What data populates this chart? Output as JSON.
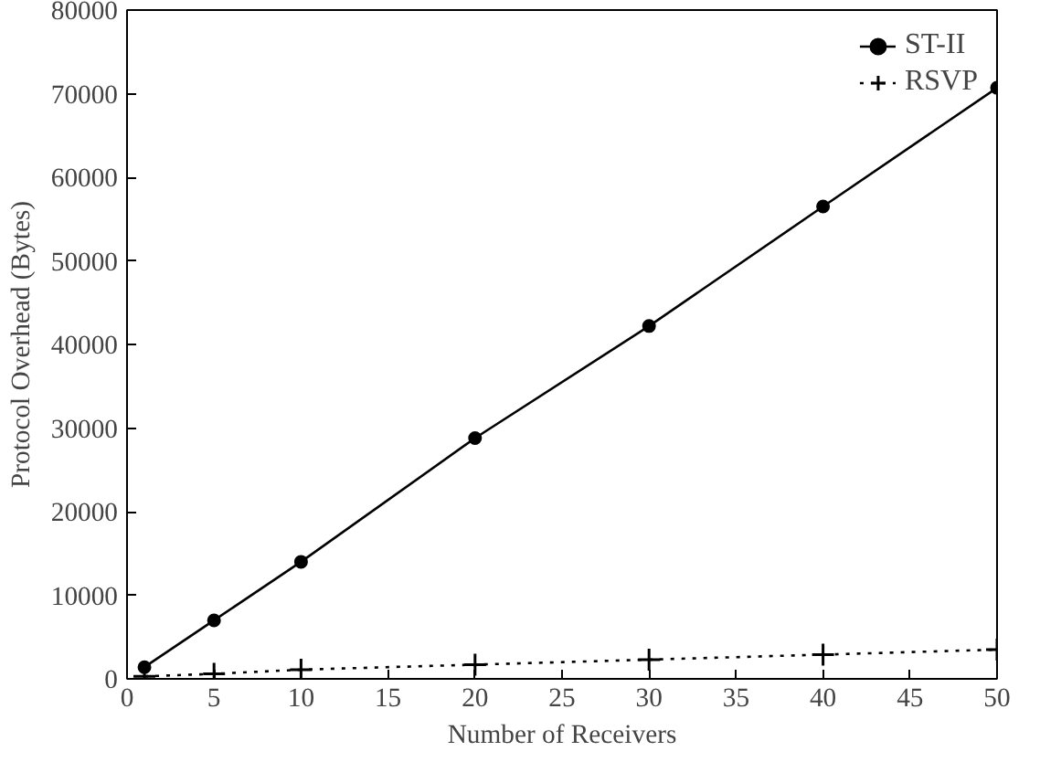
{
  "chart_data": {
    "type": "line",
    "xlabel": "Number of Receivers",
    "ylabel": "Protocol Overhead (Bytes)",
    "x": [
      1,
      5,
      10,
      20,
      30,
      40,
      50
    ],
    "series": [
      {
        "name": "ST-II",
        "color": "#000000",
        "values": [
          1400,
          7000,
          14000,
          28800,
          42200,
          56500,
          70700
        ],
        "marker": "circle",
        "line_style": "solid"
      },
      {
        "name": "RSVP",
        "color": "#000000",
        "values": [
          300,
          600,
          1100,
          1700,
          2300,
          2900,
          3500
        ],
        "marker": "cross",
        "line_style": "dotted"
      }
    ],
    "xlim": [
      0,
      50
    ],
    "ylim": [
      0,
      80000
    ],
    "xticks": [
      0,
      5,
      10,
      15,
      20,
      25,
      30,
      35,
      40,
      45,
      50
    ],
    "yticks": [
      0,
      10000,
      20000,
      30000,
      40000,
      50000,
      60000,
      70000,
      80000
    ],
    "grid": false,
    "legend": "top right"
  }
}
